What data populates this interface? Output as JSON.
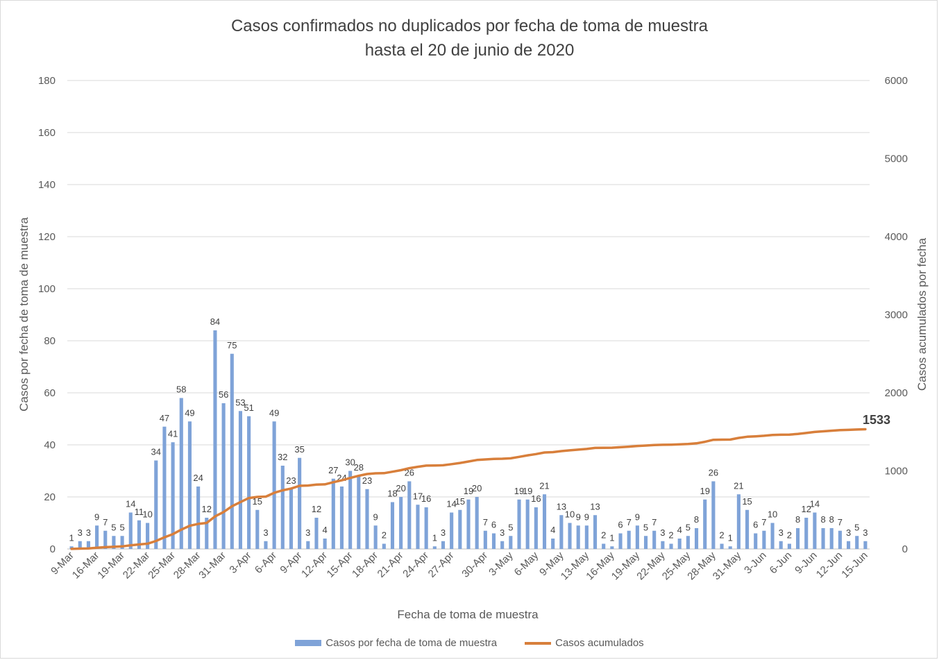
{
  "chart_data": {
    "type": "bar",
    "title": "Casos confirmados no duplicados por fecha de toma de muestra",
    "subtitle": "hasta el 20 de junio de 2020",
    "xlabel": "Fecha de toma de muestra",
    "ylabel": "Casos por fecha de toma de muestra",
    "y2label": "Casos acumulados por fecha",
    "ylim": [
      0,
      180
    ],
    "y2lim": [
      0,
      6000
    ],
    "yticks": [
      "0",
      "20",
      "40",
      "60",
      "80",
      "100",
      "120",
      "140",
      "160",
      "180"
    ],
    "y2ticks": [
      "0",
      "1000",
      "2000",
      "3000",
      "4000",
      "5000",
      "6000"
    ],
    "grid": true,
    "legend_position": "bottom",
    "x_tick_labels": [
      "9-Mar",
      "16-Mar",
      "19-Mar",
      "22-Mar",
      "25-Mar",
      "28-Mar",
      "31-Mar",
      "3-Apr",
      "6-Apr",
      "9-Apr",
      "12-Apr",
      "15-Apr",
      "18-Apr",
      "21-Apr",
      "24-Apr",
      "27-Apr",
      "30-Apr",
      "3-May",
      "6-May",
      "9-May",
      "13-May",
      "16-May",
      "19-May",
      "22-May",
      "25-May",
      "28-May",
      "31-May",
      "3-Jun",
      "6-Jun",
      "9-Jun",
      "12-Jun",
      "15-Jun"
    ],
    "series": [
      {
        "name": "Casos por fecha de toma de muestra",
        "type": "bar",
        "color": "#7fa3d8",
        "values": [
          1,
          3,
          3,
          9,
          7,
          5,
          5,
          14,
          11,
          10,
          34,
          47,
          41,
          58,
          49,
          24,
          12,
          84,
          56,
          75,
          53,
          51,
          15,
          3,
          49,
          32,
          23,
          35,
          3,
          12,
          4,
          27,
          24,
          30,
          28,
          23,
          9,
          2,
          18,
          20,
          26,
          17,
          16,
          1,
          3,
          14,
          15,
          19,
          20,
          7,
          6,
          3,
          5,
          19,
          19,
          16,
          21,
          4,
          13,
          10,
          9,
          9,
          13,
          2,
          1,
          6,
          7,
          9,
          5,
          7,
          3,
          2,
          4,
          5,
          8,
          19,
          26,
          2,
          1,
          21,
          15,
          6,
          7,
          10,
          3,
          2,
          8,
          12,
          14,
          8,
          8,
          7,
          3,
          5,
          3
        ]
      },
      {
        "name": "Casos acumulados",
        "type": "line",
        "color": "#d87f3b",
        "end_label": "1533"
      }
    ]
  },
  "legend": {
    "bar_label": "Casos por fecha de toma de muestra",
    "line_label": "Casos acumulados"
  }
}
